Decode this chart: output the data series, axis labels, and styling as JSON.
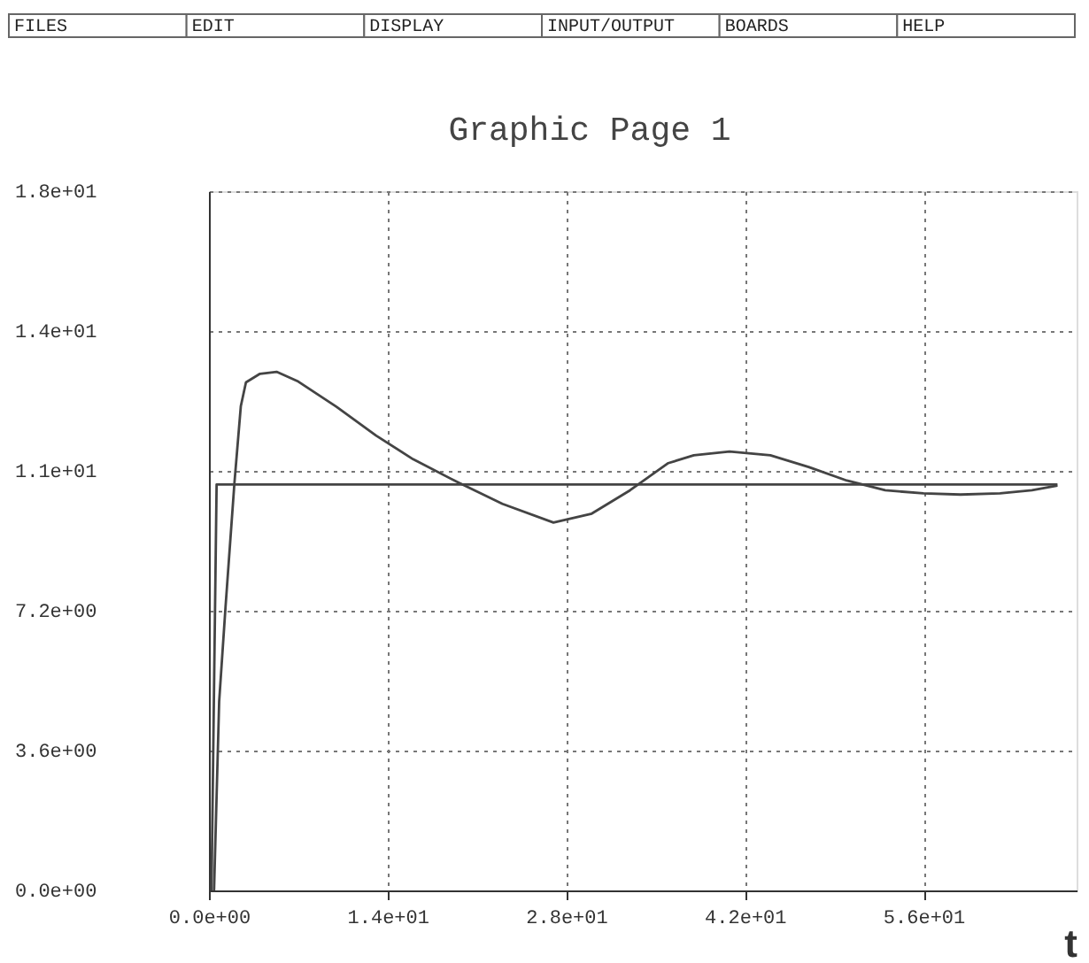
{
  "chart_data": {
    "type": "line",
    "title": "Graphic Page 1",
    "xlabel": "t",
    "annotations": [
      "FILES",
      "EDIT",
      "DISPLAY",
      "INPUT/OUTPUT",
      "BOARDS",
      "HELP"
    ],
    "series": [
      {
        "color": "#444444",
        "x": [
          0.4,
          0.8,
          1.3,
          2.0,
          2.5,
          2.9,
          4.0,
          5.3,
          7.0,
          10.0,
          13.1,
          16.0,
          19.6,
          23.0,
          27.0,
          30.0,
          33.0,
          36.0,
          38.0,
          40.8,
          44.0,
          47.0,
          50.0,
          53.0,
          56.0,
          58.9,
          62.0,
          64.5,
          66.5
        ],
        "values": [
          0.0,
          4.86,
          7.3,
          10.5,
          12.47,
          13.08,
          13.3,
          13.35,
          13.1,
          12.45,
          11.71,
          11.1,
          10.49,
          9.95,
          9.47,
          9.7,
          10.3,
          11.0,
          11.2,
          11.3,
          11.2,
          10.9,
          10.55,
          10.3,
          10.22,
          10.19,
          10.22,
          10.3,
          10.42
        ]
      },
      {
        "color": "#444444",
        "x": [
          0.2,
          0.6,
          1.6,
          66.5
        ],
        "values": [
          0.0,
          10.45,
          10.45,
          10.45
        ]
      }
    ],
    "xlim": [
      0,
      68
    ],
    "ylim": [
      0,
      18
    ],
    "xticks": [
      {
        "value": 0,
        "label": "0.0e+00"
      },
      {
        "value": 14,
        "label": "1.4e+01"
      },
      {
        "value": 28,
        "label": "2.8e+01"
      },
      {
        "value": 42,
        "label": "4.2e+01"
      },
      {
        "value": 56,
        "label": "5.6e+01"
      }
    ],
    "yticks": [
      {
        "value": 0,
        "label": "0.0e+00"
      },
      {
        "value": 3.6,
        "label": "3.6e+00"
      },
      {
        "value": 7.2,
        "label": "7.2e+00"
      },
      {
        "value": 10.8,
        "label": "1.1e+01"
      },
      {
        "value": 14.4,
        "label": "1.4e+01"
      },
      {
        "value": 18,
        "label": "1.8e+01"
      }
    ],
    "grid": true,
    "line_style": "solid"
  }
}
